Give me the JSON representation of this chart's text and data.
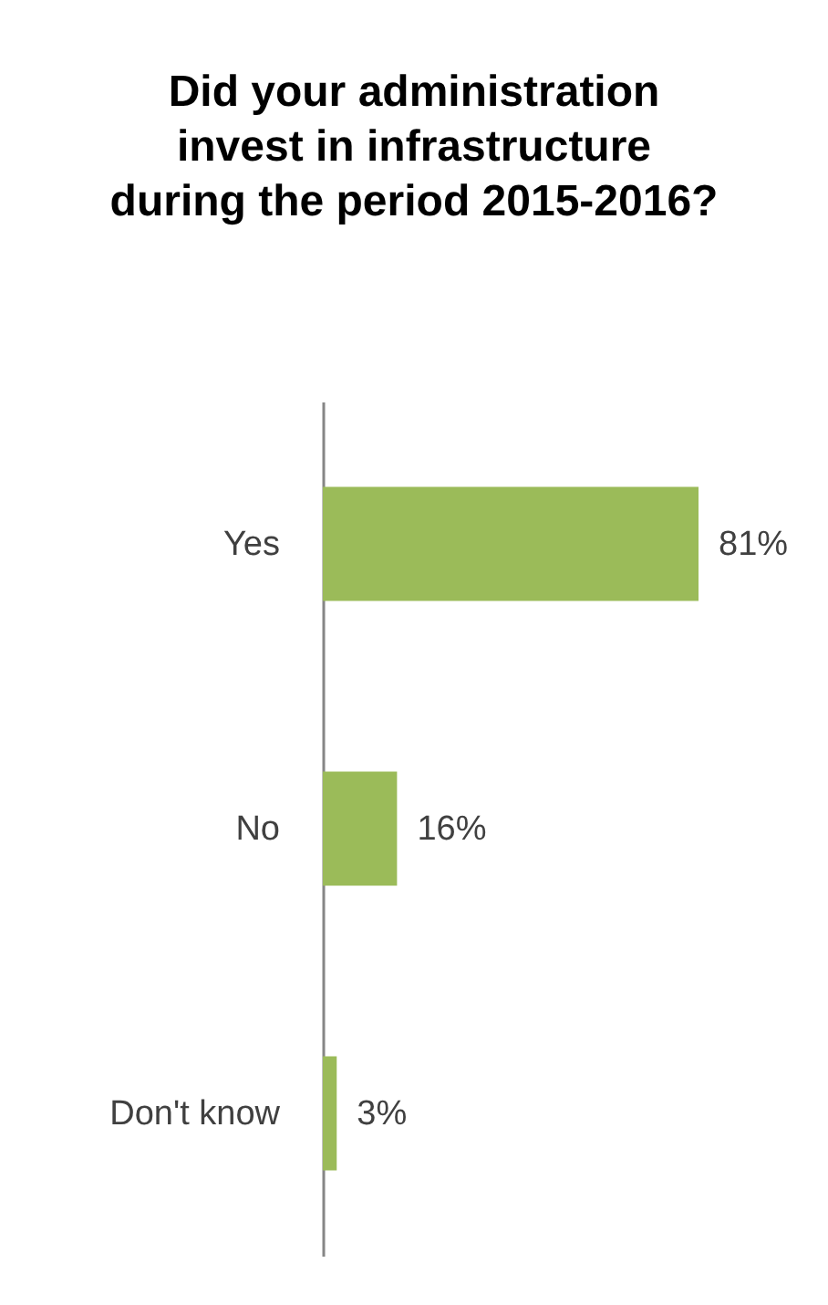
{
  "chart_data": {
    "type": "bar",
    "orientation": "horizontal",
    "title": "Did your administration invest in infrastructure during the period 2015-2016?",
    "categories": [
      "Yes",
      "No",
      "Don't know"
    ],
    "values": [
      81,
      16,
      3
    ],
    "value_labels": [
      "81%",
      "16%",
      "3%"
    ],
    "color": "#9bbb59"
  }
}
